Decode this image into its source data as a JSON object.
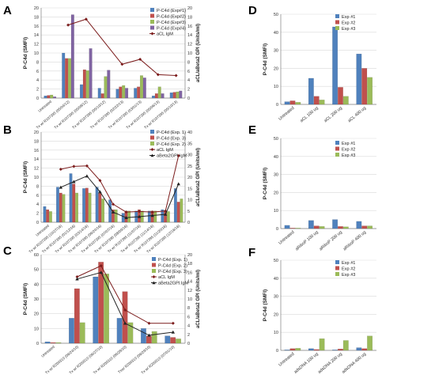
{
  "colors": {
    "blue": "#4f81bd",
    "red": "#c0504d",
    "green": "#9bbb59",
    "purple": "#8064a2",
    "line": "#7b1b1b",
    "grid": "#d9d9d9",
    "axis": "#808080"
  },
  "chart_data": [
    {
      "panel": "A",
      "type": "bar",
      "ylabel": "P-C4d (SMFI)",
      "y2label": "aCL/aBeta2 GPI (Units/ml)",
      "ylim": [
        0,
        20
      ],
      "yticks": [
        0,
        2,
        4,
        6,
        8,
        10,
        12,
        14,
        16,
        18,
        20
      ],
      "y2lim": [
        0,
        20
      ],
      "y2ticks": [
        0,
        2,
        4,
        6,
        8,
        10,
        12,
        14,
        16,
        18,
        20
      ],
      "categories": [
        "Untreated",
        "Tx w/ R107395 (05/04/12)",
        "Tx w/ R107395 (05/08/12)",
        "Tx w/ R107395 (05/10/12)",
        "Tx w/ R107395 (02/22/13)",
        "Tx w/ R107395 (03/01/13)",
        "Tx w/ R107395 (05/06/13)",
        "Tx w/ R107395 (05/10/13)"
      ],
      "series": [
        {
          "name": "P-C4d (Exp#1)",
          "color": "blue",
          "values": [
            0.5,
            10,
            3,
            2.2,
            2,
            2.2,
            0.5,
            1.2
          ]
        },
        {
          "name": "P-C4d (Exp#2)",
          "color": "red",
          "values": [
            0.6,
            8.8,
            6.3,
            1,
            2.5,
            2.5,
            1,
            1.3
          ]
        },
        {
          "name": "P-C4d (Exp#3)",
          "color": "green",
          "values": [
            0.7,
            8.8,
            6.1,
            4.8,
            2.8,
            5,
            2.5,
            1.4
          ]
        },
        {
          "name": "P-C4d (Exp#4)",
          "color": "purple",
          "values": [
            0.3,
            18.5,
            11,
            6.2,
            2.2,
            4.5,
            1,
            1.6
          ]
        }
      ],
      "lines": [
        {
          "name": "aCL IgM",
          "color": "line",
          "marker": "diamond",
          "values": [
            null,
            16.2,
            17.5,
            null,
            7.5,
            8.6,
            5.2,
            5
          ]
        }
      ],
      "line_axis": "right"
    },
    {
      "panel": "B",
      "type": "bar",
      "ylabel": "P-C4d (SMFI)",
      "y2label": "aCL/aBeta2 GPI (Units/ml)",
      "ylim": [
        0,
        20
      ],
      "yticks": [
        0,
        2,
        4,
        6,
        8,
        10,
        12,
        14,
        16,
        18,
        20
      ],
      "y2lim": [
        0,
        40
      ],
      "y2ticks": [
        0,
        5,
        10,
        15,
        20,
        25,
        30,
        35,
        40
      ],
      "categories": [
        "Untreated",
        "Tx w/ R107395 (10/27/16)",
        "Tx w/ R107395 (01/12/16)",
        "Tx w/ R107395 (03/14/16)",
        "Tx w/ R107395 (06/24/16)",
        "Tx w/ R107395 (07/07/16)",
        "Tx w/ R107395 (08/09/16)",
        "Tx w/ R107395 (11/07/16)",
        "Tx w/ R107395 (11/14/16)",
        "Tx w/ R107395 (11/20/16)",
        "Tx w/ R107395 (12/16/16)"
      ],
      "series": [
        {
          "name": "P-C4d (Exp. 1)",
          "color": "blue",
          "values": [
            3.5,
            7.8,
            10.8,
            7.5,
            7.8,
            5,
            2,
            2.5,
            2.5,
            2.8,
            7.5
          ]
        },
        {
          "name": "P-C4d (Exp. 3)",
          "color": "red",
          "values": [
            2.8,
            6.5,
            8.5,
            7.6,
            6.5,
            2.8,
            2.5,
            2.8,
            2.5,
            2.5,
            4.5
          ]
        },
        {
          "name": "P-C4d (Exp. 2)",
          "color": "green",
          "values": [
            2.4,
            6.2,
            6.5,
            6.5,
            5.2,
            2.8,
            2.5,
            2.5,
            2.5,
            2.4,
            5.2
          ]
        }
      ],
      "lines": [
        {
          "name": "aCL IgM",
          "color": "line",
          "marker": "diamond",
          "values": [
            null,
            23.5,
            24.8,
            25,
            18.5,
            8,
            4.5,
            4.8,
            4.5,
            5,
            29.5
          ]
        },
        {
          "name": "aBeta2GPI IgM",
          "color": "#222222",
          "marker": "triangle",
          "values": [
            null,
            15.5,
            18,
            20.5,
            13.5,
            4.5,
            2,
            2.5,
            3,
            3.5,
            17
          ]
        }
      ],
      "line_axis": "right"
    },
    {
      "panel": "C",
      "type": "bar",
      "ylabel": "P-C4d (SMFI)",
      "y2label": "aCL/aBeta2 GPI (Units/ml)",
      "ylim": [
        0,
        60
      ],
      "yticks": [
        0,
        10,
        20,
        30,
        40,
        50,
        60
      ],
      "y2lim": [
        0,
        20
      ],
      "y2ticks": [
        0,
        2,
        4,
        6,
        8,
        10,
        12,
        14,
        16,
        18,
        20
      ],
      "categories": [
        "Untreated",
        "Tx w/ R209310 (06/24/10)",
        "Tx w/ R209310 (06/27/10)",
        "Tx w/ R209310 (06/28/10)",
        "Txw/ R209310 (06/29/10)",
        "Tx w/ R209310 (07/01/10)"
      ],
      "series": [
        {
          "name": "P-C4d (Exp. 1)",
          "color": "blue",
          "values": [
            1,
            17,
            45,
            17,
            10,
            5
          ]
        },
        {
          "name": "P-C4d (Exp. 2)",
          "color": "red",
          "values": [
            0.5,
            37,
            55,
            35,
            5,
            4
          ]
        },
        {
          "name": "P-C4d (Exp. 3)",
          "color": "green",
          "values": [
            0.5,
            14,
            47,
            14,
            8,
            3
          ]
        }
      ],
      "lines": [
        {
          "name": "aCL IgM",
          "color": "line",
          "marker": "diamond",
          "values": [
            null,
            15,
            17.5,
            7.5,
            4.5,
            4.5
          ]
        },
        {
          "name": "aBeta2GPI IgM",
          "color": "#222222",
          "marker": "triangle",
          "values": [
            null,
            14.5,
            16,
            4.5,
            1.8,
            2.5
          ]
        }
      ],
      "line_axis": "right"
    },
    {
      "panel": "D",
      "type": "bar",
      "ylabel": "P-C4d (SMFI)",
      "ylim": [
        0,
        50
      ],
      "yticks": [
        0,
        10,
        20,
        30,
        40,
        50
      ],
      "categories": [
        "Untreated",
        "aCL 100 ug",
        "aCL 200 ug",
        "aCL 400 ug"
      ],
      "series": [
        {
          "name": "Exp #1",
          "color": "blue",
          "values": [
            1.5,
            14.5,
            43,
            28
          ]
        },
        {
          "name": "Exp #2",
          "color": "red",
          "values": [
            2,
            4.5,
            9.5,
            20
          ]
        },
        {
          "name": "Exp #3",
          "color": "green",
          "values": [
            1.2,
            2.5,
            4.5,
            15
          ]
        }
      ]
    },
    {
      "panel": "E",
      "type": "bar",
      "ylabel": "P-C4d (SMFI)",
      "ylim": [
        0,
        50
      ],
      "yticks": [
        0,
        10,
        20,
        30,
        40,
        50
      ],
      "categories": [
        "Untreated",
        "aRiboP 100 ug",
        "aRiboP 200 ug",
        "aRiboP 400 ug"
      ],
      "series": [
        {
          "name": "Exp #1",
          "color": "blue",
          "values": [
            1.8,
            4.5,
            5,
            4
          ]
        },
        {
          "name": "Exp #2",
          "color": "red",
          "values": [
            0.3,
            1.5,
            1.2,
            1.5
          ]
        },
        {
          "name": "Exp #3",
          "color": "green",
          "values": [
            0.3,
            1.2,
            1,
            1.5
          ]
        }
      ]
    },
    {
      "panel": "F",
      "type": "bar",
      "ylabel": "P-C4d (SMFI)",
      "ylim": [
        0,
        50
      ],
      "yticks": [
        0,
        10,
        20,
        30,
        40,
        50
      ],
      "categories": [
        "Untreated",
        "adsDNA 100 ug",
        "adsDNA 200 ug",
        "adsDNA 400 ug"
      ],
      "series": [
        {
          "name": "Exp #1",
          "color": "blue",
          "values": [
            0.3,
            1,
            0.3,
            1.5
          ]
        },
        {
          "name": "Exp #2",
          "color": "red",
          "values": [
            1,
            0.5,
            0.8,
            1
          ]
        },
        {
          "name": "Exp #3",
          "color": "green",
          "values": [
            1.2,
            6.5,
            5.5,
            8
          ]
        }
      ]
    }
  ]
}
